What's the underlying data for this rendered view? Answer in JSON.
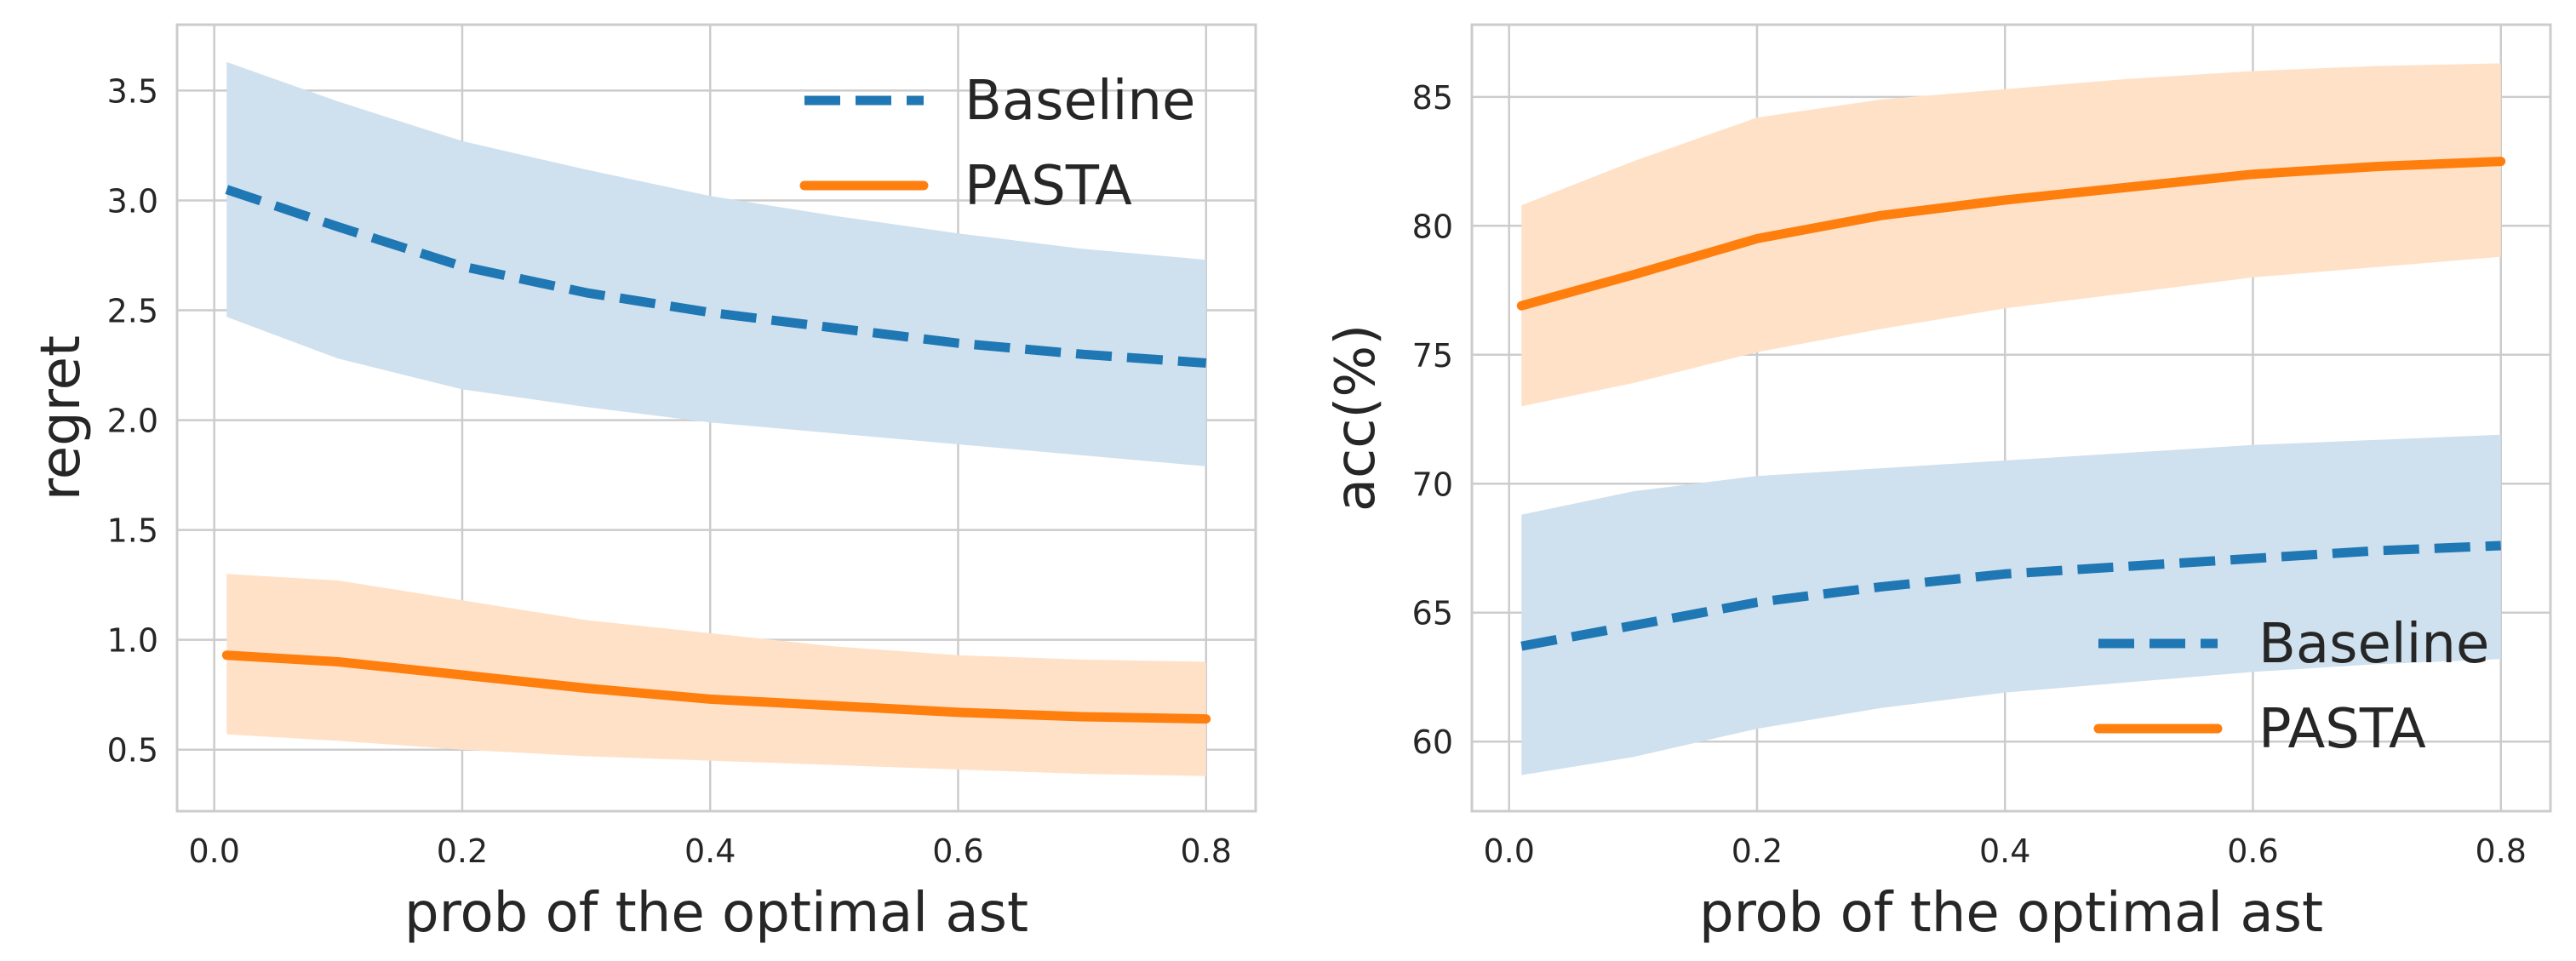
{
  "chart_data": [
    {
      "type": "line",
      "title": "",
      "xlabel": "prob of the optimal ast",
      "ylabel": "regret",
      "xlim": [
        -0.03,
        0.84
      ],
      "ylim": [
        0.22,
        3.8
      ],
      "xticks": [
        0.0,
        0.2,
        0.4,
        0.6,
        0.8
      ],
      "xtick_labels": [
        "0.0",
        "0.2",
        "0.4",
        "0.6",
        "0.8"
      ],
      "yticks": [
        0.5,
        1.0,
        1.5,
        2.0,
        2.5,
        3.0,
        3.5
      ],
      "ytick_labels": [
        "0.5",
        "1.0",
        "1.5",
        "2.0",
        "2.5",
        "3.0",
        "3.5"
      ],
      "grid": true,
      "legend_position": "top-right",
      "x": [
        0.01,
        0.1,
        0.2,
        0.3,
        0.4,
        0.5,
        0.6,
        0.7,
        0.8
      ],
      "series": [
        {
          "name": "Baseline",
          "color": "#1f77b4",
          "band_color": "#cfe0ee",
          "style": "dashed",
          "values": [
            3.05,
            2.88,
            2.7,
            2.58,
            2.49,
            2.42,
            2.35,
            2.3,
            2.26
          ],
          "lower": [
            2.47,
            2.28,
            2.14,
            2.06,
            1.99,
            1.94,
            1.89,
            1.84,
            1.79
          ],
          "upper": [
            3.63,
            3.45,
            3.27,
            3.14,
            3.02,
            2.93,
            2.85,
            2.78,
            2.73
          ]
        },
        {
          "name": "PASTA",
          "color": "#ff7f0e",
          "band_color": "#ffe1c8",
          "style": "solid",
          "values": [
            0.93,
            0.9,
            0.84,
            0.78,
            0.73,
            0.7,
            0.67,
            0.65,
            0.64
          ],
          "lower": [
            0.57,
            0.54,
            0.5,
            0.47,
            0.45,
            0.43,
            0.41,
            0.39,
            0.38
          ],
          "upper": [
            1.3,
            1.27,
            1.18,
            1.09,
            1.03,
            0.97,
            0.93,
            0.91,
            0.9
          ]
        }
      ]
    },
    {
      "type": "line",
      "title": "",
      "xlabel": "prob of the optimal ast",
      "ylabel": "acc(%)",
      "xlim": [
        -0.03,
        0.84
      ],
      "ylim": [
        57.3,
        87.8
      ],
      "xticks": [
        0.0,
        0.2,
        0.4,
        0.6,
        0.8
      ],
      "xtick_labels": [
        "0.0",
        "0.2",
        "0.4",
        "0.6",
        "0.8"
      ],
      "yticks": [
        60,
        65,
        70,
        75,
        80,
        85
      ],
      "ytick_labels": [
        "60",
        "65",
        "70",
        "75",
        "80",
        "85"
      ],
      "grid": true,
      "legend_position": "bottom-right",
      "x": [
        0.01,
        0.1,
        0.2,
        0.3,
        0.4,
        0.5,
        0.6,
        0.7,
        0.8
      ],
      "series": [
        {
          "name": "Baseline",
          "color": "#1f77b4",
          "band_color": "#cfe0ee",
          "style": "dashed",
          "values": [
            63.7,
            64.5,
            65.4,
            66.0,
            66.5,
            66.8,
            67.1,
            67.4,
            67.6
          ],
          "lower": [
            58.7,
            59.4,
            60.5,
            61.3,
            61.9,
            62.3,
            62.7,
            63.0,
            63.2
          ],
          "upper": [
            68.8,
            69.7,
            70.3,
            70.6,
            70.9,
            71.2,
            71.5,
            71.7,
            71.9
          ]
        },
        {
          "name": "PASTA",
          "color": "#ff7f0e",
          "band_color": "#ffe1c8",
          "style": "solid",
          "values": [
            76.9,
            78.1,
            79.5,
            80.4,
            81.0,
            81.5,
            82.0,
            82.3,
            82.5
          ],
          "lower": [
            73.0,
            73.9,
            75.1,
            76.0,
            76.8,
            77.4,
            78.0,
            78.4,
            78.8
          ],
          "upper": [
            80.8,
            82.5,
            84.2,
            84.9,
            85.3,
            85.7,
            86.0,
            86.2,
            86.3
          ]
        }
      ]
    }
  ]
}
